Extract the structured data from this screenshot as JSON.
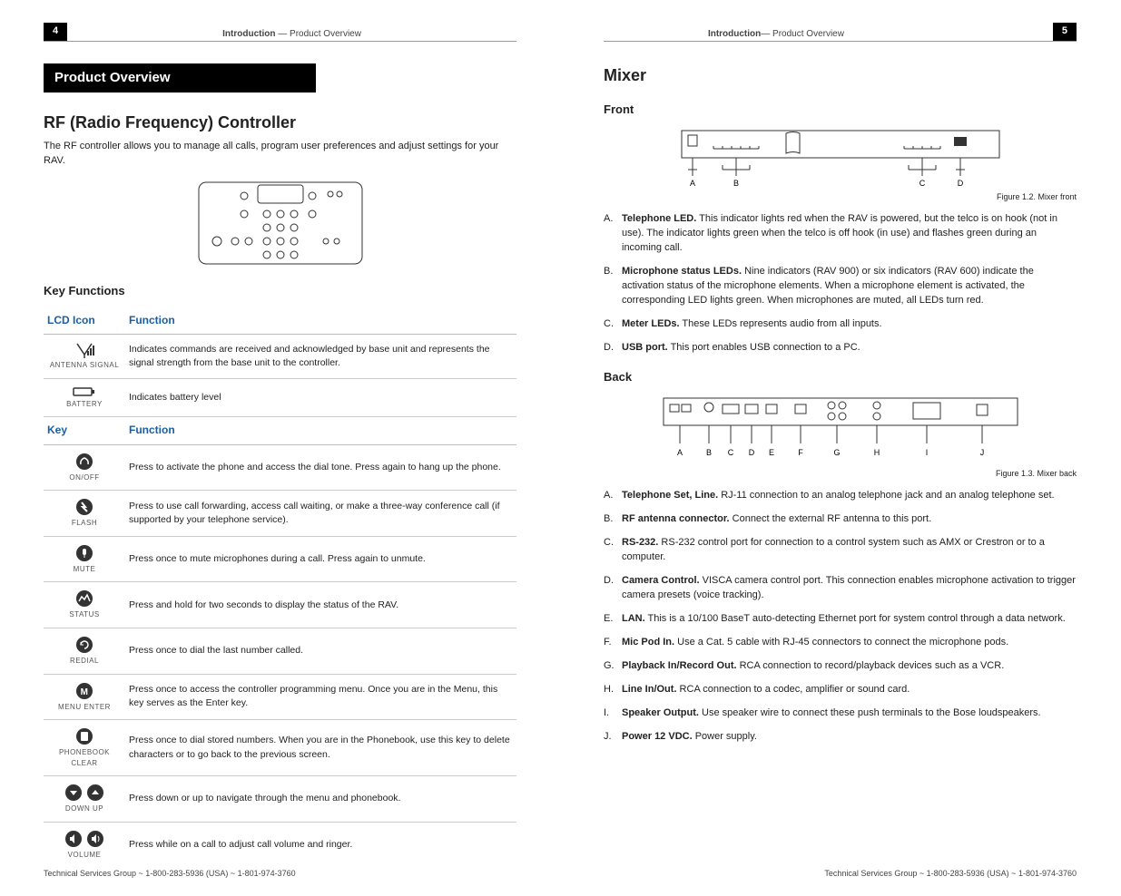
{
  "left": {
    "page_num": "4",
    "header_bold": "Introduction",
    "header_sep": " —  ",
    "header_rest": "Product Overview",
    "section_title": "Product Overview",
    "h_main": "RF (Radio Frequency) Controller",
    "intro": "The RF controller allows you to manage all calls, program user preferences and adjust settings for your RAV.",
    "h_keyfunc": "Key Functions",
    "th_icon1": "LCD Icon",
    "th_func": "Function",
    "th_key": "Key",
    "rows1": [
      {
        "label": "ANTENNA SIGNAL",
        "desc": "Indicates commands are received and acknowledged by base unit and represents the signal strength from the base unit to the controller."
      },
      {
        "label": "BATTERY",
        "desc": "Indicates battery level"
      }
    ],
    "rows2": [
      {
        "label": "ON/OFF",
        "desc": "Press to activate the phone and access the dial tone. Press again to hang up the phone."
      },
      {
        "label": "FLASH",
        "desc": "Press to use call forwarding, access call waiting, or make a three-way conference call (if supported by your telephone service)."
      },
      {
        "label": "MUTE",
        "desc": "Press once to mute microphones during a call. Press again to unmute."
      },
      {
        "label": "STATUS",
        "desc": "Press and hold for two seconds to display the status of the RAV."
      },
      {
        "label": "REDIAL",
        "desc": "Press once to dial the last number called."
      },
      {
        "label": "MENU ENTER",
        "desc": "Press once to access the controller programming menu. Once you are in the Menu, this key serves as the Enter key."
      },
      {
        "label": "PHONEBOOK CLEAR",
        "desc": "Press once to dial stored numbers. When you are in the Phonebook, use this key to delete characters or to go back to the previous screen."
      },
      {
        "label": "DOWN    UP",
        "desc": "Press down or up to navigate through the menu and phonebook."
      },
      {
        "label": "VOLUME",
        "desc": "Press while on a call to adjust call volume and ringer."
      }
    ],
    "footer": "Technical Services Group ~ 1-800-283-5936 (USA) ~ 1-801-974-3760"
  },
  "right": {
    "page_num": "5",
    "header_bold": "Introduction",
    "header_sep": "—  ",
    "header_rest": "Product Overview",
    "h_mixer": "Mixer",
    "h_front": "Front",
    "fig1": "Figure 1.2. Mixer front",
    "front_list": [
      {
        "lt": "A.",
        "term": "Telephone LED.",
        "desc": " This indicator lights red when the RAV is powered, but the telco is on hook (not in use). The indicator lights green when the telco is off hook (in use) and flashes green during an incoming call."
      },
      {
        "lt": "B.",
        "term": "Microphone status LEDs.",
        "desc": " Nine indicators (RAV 900) or six indicators (RAV 600) indicate the activation status of the microphone elements. When a microphone element is activated, the corresponding LED lights green. When microphones are muted, all LEDs turn red."
      },
      {
        "lt": "C.",
        "term": "Meter LEDs.",
        "desc": " These LEDs represents audio from all inputs."
      },
      {
        "lt": "D.",
        "term": "USB port.",
        "desc": " This port enables USB connection to a PC."
      }
    ],
    "h_back": "Back",
    "fig2": "Figure 1.3. Mixer back",
    "back_list": [
      {
        "lt": "A.",
        "term": "Telephone Set, Line.",
        "desc": " RJ-11 connection to an analog telephone jack and an analog telephone set."
      },
      {
        "lt": "B.",
        "term": "RF antenna connector.",
        "desc": " Connect the external RF antenna to this port."
      },
      {
        "lt": "C.",
        "term": "RS-232.",
        "desc": " RS-232 control port for connection to a control system such as AMX or Crestron or to a computer."
      },
      {
        "lt": "D.",
        "term": "Camera Control.",
        "desc": " VISCA camera control port. This connection enables microphone activation to trigger camera presets (voice tracking)."
      },
      {
        "lt": "E.",
        "term": "LAN.",
        "desc": " This is a 10/100 BaseT auto-detecting Ethernet port for system control through a data network."
      },
      {
        "lt": "F.",
        "term": "Mic Pod In.",
        "desc": " Use a Cat. 5 cable with RJ-45 connectors to connect the microphone pods."
      },
      {
        "lt": "G.",
        "term": "Playback In/Record Out.",
        "desc": " RCA connection to record/playback devices such as a VCR."
      },
      {
        "lt": "H.",
        "term": "Line In/Out.",
        "desc": " RCA connection to a codec, amplifier or sound card."
      },
      {
        "lt": "I.",
        "term": "Speaker Output.",
        "desc": " Use speaker wire to connect these push terminals to the Bose loudspeakers."
      },
      {
        "lt": "J.",
        "term": "Power 12 VDC.",
        "desc": " Power supply."
      }
    ],
    "footer": "Technical Services Group ~ 1-800-283-5936 (USA) ~ 1-801-974-3760"
  },
  "front_labels": [
    "A",
    "B",
    "C",
    "D"
  ],
  "back_labels": [
    "A",
    "B",
    "C",
    "D",
    "E",
    "F",
    "G",
    "H",
    "I",
    "J"
  ],
  "colors": {
    "header_blue": "#1a5fa5",
    "line": "#999999",
    "black": "#000000"
  }
}
